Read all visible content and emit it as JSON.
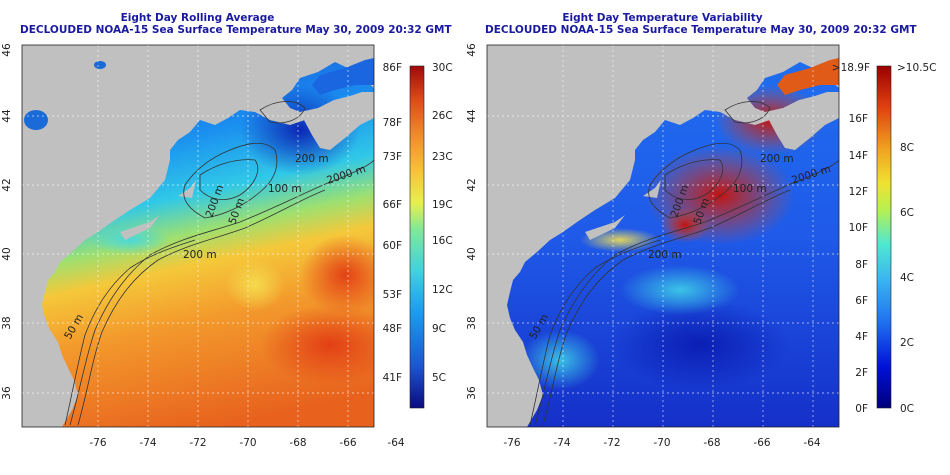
{
  "left_panel": {
    "title_line1": "Eight Day Rolling Average",
    "title_line2": "DECLOUDED NOAA-15 Sea Surface Temperature May 30, 2009 20:32 GMT",
    "colorbar_f": [
      "86F",
      "78F",
      "73F",
      "66F",
      "60F",
      "53F",
      "48F",
      "41F"
    ],
    "colorbar_c": [
      "30C",
      "26C",
      "23C",
      "19C",
      "16C",
      "12C",
      "9C",
      "5C"
    ],
    "contour_labels": [
      "200 m",
      "2000 m",
      "50 m",
      "200 m",
      "50 m",
      "100 m",
      "200 m"
    ]
  },
  "right_panel": {
    "title_line1": "Eight Day Temperature Variability",
    "title_line2": "DECLOUDED NOAA-15 Sea Surface Temperature May 30, 2009 20:32 GMT",
    "colorbar_f": [
      ">18.9F",
      "16F",
      "14F",
      "12F",
      "10F",
      "8F",
      "6F",
      "4F",
      "2F",
      "0F"
    ],
    "colorbar_c": [
      ">10.5C",
      "8C",
      "6C",
      "4C",
      "2C",
      "0C"
    ],
    "contour_labels": [
      "200 m",
      "2000 m",
      "50 m",
      "200 m",
      "50 m",
      "100 m",
      "200 m"
    ]
  },
  "axes": {
    "x_ticks": [
      "-76",
      "-74",
      "-72",
      "-70",
      "-68",
      "-66",
      "-64"
    ],
    "y_ticks": [
      "36",
      "38",
      "40",
      "42",
      "44",
      "46"
    ]
  },
  "colors": {
    "title": "#1a1aa0",
    "land": "#c0c0c0",
    "sst_scale": [
      "#0a0a80",
      "#1c55d0",
      "#1a9cf0",
      "#3fd2e0",
      "#7fe89a",
      "#e8f04a",
      "#f7bf33",
      "#f08a2a",
      "#e04a1a",
      "#a00a0a"
    ],
    "var_scale": [
      "#00007a",
      "#0010d8",
      "#2070f0",
      "#3ab8f0",
      "#50e8d0",
      "#b8f050",
      "#f0e030",
      "#f0a020",
      "#e04010",
      "#9a0000"
    ]
  }
}
